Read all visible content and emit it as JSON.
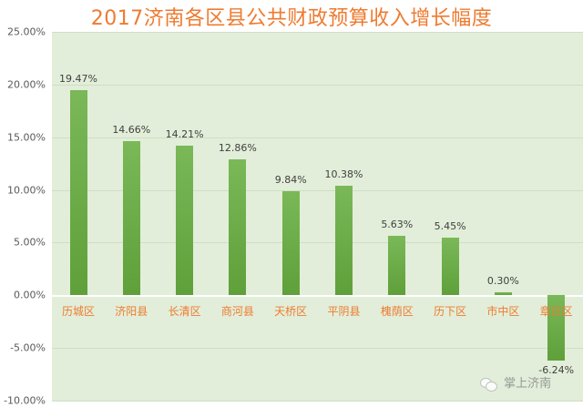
{
  "chart_data": {
    "type": "bar",
    "title": "2017济南各区县公共财政预算收入增长幅度",
    "categories": [
      "历城区",
      "济阳县",
      "长清区",
      "商河县",
      "天桥区",
      "平阴县",
      "槐荫区",
      "历下区",
      "市中区",
      "章丘区"
    ],
    "values": [
      19.47,
      14.66,
      14.21,
      12.86,
      9.84,
      10.38,
      5.63,
      5.45,
      0.3,
      -6.24
    ],
    "value_labels": [
      "19.47%",
      "14.66%",
      "14.21%",
      "12.86%",
      "9.84%",
      "10.38%",
      "5.63%",
      "5.45%",
      "0.30%",
      "-6.24%"
    ],
    "xlabel": "",
    "ylabel": "",
    "ylim": [
      -10,
      25
    ],
    "yticks": [
      "25.00%",
      "20.00%",
      "15.00%",
      "10.00%",
      "5.00%",
      "0.00%",
      "-5.00%",
      "-10.00%"
    ],
    "grid": true,
    "legend": null,
    "colors": {
      "bar": "#6AAB46",
      "title": "#EE7B30",
      "category_label": "#EE7B30",
      "plot_background": "#E2EED9"
    }
  },
  "watermark": {
    "text": "掌上济南",
    "icon": "wechat-icon"
  }
}
